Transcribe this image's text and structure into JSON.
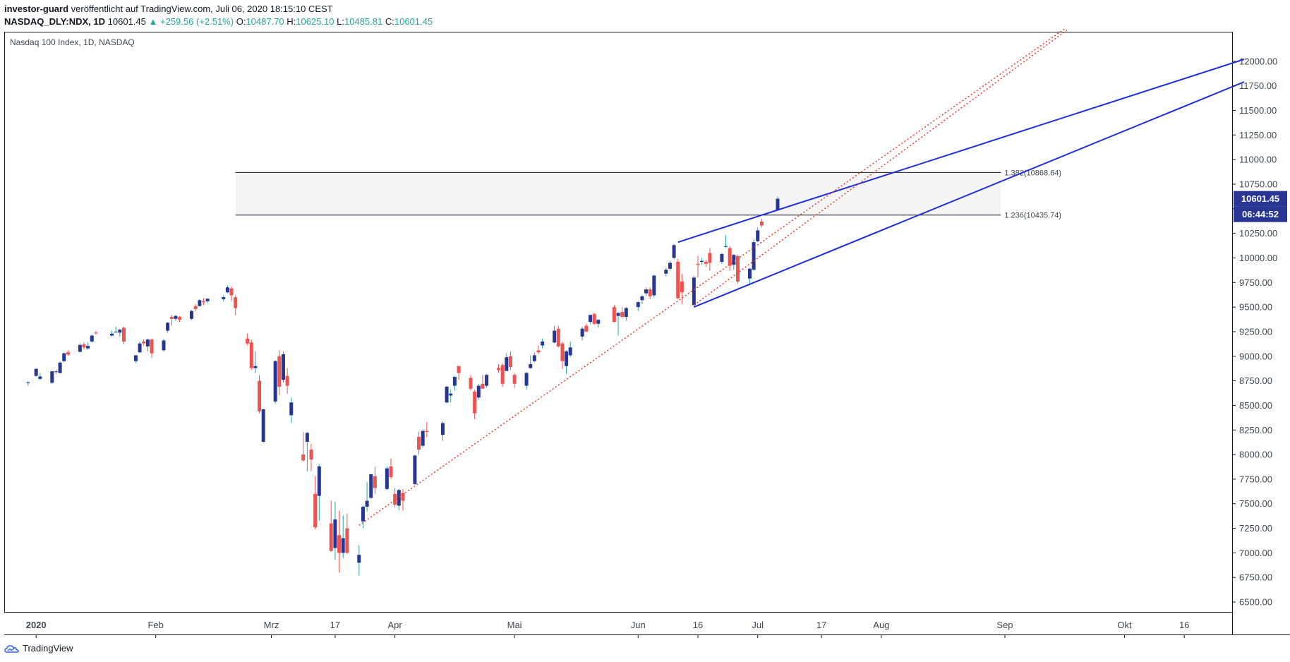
{
  "header": {
    "author": "investor-guard",
    "published": "veröffentlicht auf TradingView.com, Juli 06, 2020 18:15:10 CEST",
    "symbol": "NASDAQ_DLY:NDX, 1D",
    "last": "10601.45",
    "change": "▲ +259.56 (+2.51%)",
    "o_label": "O:",
    "o_value": "10487.70",
    "h_label": "H:",
    "h_value": "10625.10",
    "l_label": "L:",
    "l_value": "10485.81",
    "c_label": "C:",
    "c_value": "10601.45"
  },
  "footer": {
    "brand": "TradingView"
  },
  "colors": {
    "up": "#26a69a",
    "down": "#ef5350",
    "body_up": "#283593",
    "body_down": "#ef5350",
    "trendline": "#1f2ee0",
    "dotted": "#ef3b2c",
    "tag": "#283593"
  },
  "chart_data": {
    "type": "candlestick",
    "title": "Nasdaq 100 Index, 1D, NASDAQ",
    "ylim": [
      6400,
      12300
    ],
    "y_ticks": [
      6500,
      6750,
      7000,
      7250,
      7500,
      7750,
      8000,
      8250,
      8500,
      8750,
      9000,
      9250,
      9500,
      9750,
      10000,
      10250,
      10500,
      10750,
      11000,
      11250,
      11500,
      11750,
      12000
    ],
    "x_ticks": [
      {
        "date": "2020-01-02",
        "label": "2020"
      },
      {
        "date": "2020-02-01",
        "label": "Feb"
      },
      {
        "date": "2020-03-01",
        "label": "Mrz"
      },
      {
        "date": "2020-03-17",
        "label": "17"
      },
      {
        "date": "2020-04-01",
        "label": "Apr"
      },
      {
        "date": "2020-05-01",
        "label": "Mai"
      },
      {
        "date": "2020-06-01",
        "label": "Jun"
      },
      {
        "date": "2020-06-16",
        "label": "16"
      },
      {
        "date": "2020-07-01",
        "label": "Jul"
      },
      {
        "date": "2020-07-17",
        "label": "17"
      },
      {
        "date": "2020-08-01",
        "label": "Aug"
      },
      {
        "date": "2020-09-01",
        "label": "Sep"
      },
      {
        "date": "2020-10-01",
        "label": "Okt"
      },
      {
        "date": "2020-10-16",
        "label": "16"
      }
    ],
    "last_price_tag": "10601.45",
    "countdown_tag": "06:44:52",
    "candles": [
      [
        "2019-12-31",
        8730,
        8750,
        8700,
        8733
      ],
      [
        "2020-01-02",
        8800,
        8875,
        8790,
        8872
      ],
      [
        "2020-01-03",
        8770,
        8830,
        8760,
        8794
      ],
      [
        "2020-01-06",
        8730,
        8850,
        8720,
        8847
      ],
      [
        "2020-01-07",
        8840,
        8860,
        8820,
        8846
      ],
      [
        "2020-01-08",
        8830,
        8950,
        8825,
        8935
      ],
      [
        "2020-01-09",
        8950,
        9040,
        8940,
        9030
      ],
      [
        "2020-01-10",
        9040,
        9060,
        9005,
        9017
      ],
      [
        "2020-01-13",
        9045,
        9130,
        9040,
        9115
      ],
      [
        "2020-01-14",
        9120,
        9140,
        9070,
        9090
      ],
      [
        "2020-01-15",
        9080,
        9140,
        9070,
        9105
      ],
      [
        "2020-01-16",
        9150,
        9220,
        9140,
        9210
      ],
      [
        "2020-01-17",
        9240,
        9260,
        9220,
        9232
      ],
      [
        "2020-01-21",
        9210,
        9260,
        9200,
        9230
      ],
      [
        "2020-01-22",
        9250,
        9300,
        9240,
        9250
      ],
      [
        "2020-01-23",
        9240,
        9280,
        9200,
        9270
      ],
      [
        "2020-01-24",
        9290,
        9300,
        9120,
        9150
      ],
      [
        "2020-01-27",
        8950,
        9010,
        8930,
        9010
      ],
      [
        "2020-01-28",
        9040,
        9150,
        9030,
        9130
      ],
      [
        "2020-01-29",
        9150,
        9170,
        9110,
        9130
      ],
      [
        "2020-01-30",
        9100,
        9180,
        9050,
        9170
      ],
      [
        "2020-01-31",
        9170,
        9180,
        8980,
        9030
      ],
      [
        "2020-02-03",
        9060,
        9180,
        9050,
        9160
      ],
      [
        "2020-02-04",
        9260,
        9350,
        9240,
        9340
      ],
      [
        "2020-02-05",
        9400,
        9420,
        9310,
        9380
      ],
      [
        "2020-02-06",
        9380,
        9420,
        9360,
        9410
      ],
      [
        "2020-02-07",
        9400,
        9410,
        9350,
        9370
      ],
      [
        "2020-02-10",
        9380,
        9470,
        9370,
        9460
      ],
      [
        "2020-02-11",
        9510,
        9530,
        9460,
        9480
      ],
      [
        "2020-02-12",
        9510,
        9580,
        9505,
        9570
      ],
      [
        "2020-02-13",
        9560,
        9590,
        9520,
        9550
      ],
      [
        "2020-02-14",
        9560,
        9590,
        9540,
        9585
      ],
      [
        "2020-02-18",
        9580,
        9620,
        9560,
        9600
      ],
      [
        "2020-02-19",
        9650,
        9720,
        9640,
        9700
      ],
      [
        "2020-02-20",
        9690,
        9710,
        9560,
        9620
      ],
      [
        "2020-02-21",
        9600,
        9620,
        9420,
        9490
      ],
      [
        "2020-02-24",
        9180,
        9230,
        9110,
        9130
      ],
      [
        "2020-02-25",
        9140,
        9170,
        8860,
        8880
      ],
      [
        "2020-02-26",
        8880,
        9050,
        8830,
        8900
      ],
      [
        "2020-02-27",
        8750,
        8810,
        8420,
        8440
      ],
      [
        "2020-02-28",
        8130,
        8470,
        8120,
        8460
      ],
      [
        "2020-03-02",
        8540,
        8960,
        8520,
        8950
      ],
      [
        "2020-03-03",
        9000,
        9060,
        8600,
        8690
      ],
      [
        "2020-03-04",
        8760,
        9050,
        8730,
        9020
      ],
      [
        "2020-03-05",
        8800,
        8880,
        8620,
        8700
      ],
      [
        "2020-03-06",
        8400,
        8580,
        8320,
        8530
      ],
      [
        "2020-03-09",
        8000,
        8230,
        7930,
        7940
      ],
      [
        "2020-03-10",
        8130,
        8230,
        7830,
        8220
      ],
      [
        "2020-03-11",
        8050,
        8110,
        7830,
        7950
      ],
      [
        "2020-03-12",
        7600,
        7780,
        7240,
        7260
      ],
      [
        "2020-03-13",
        7580,
        7900,
        7330,
        7880
      ],
      [
        "2020-03-16",
        7300,
        7530,
        7010,
        7020
      ],
      [
        "2020-03-17",
        7050,
        7520,
        6930,
        7340
      ],
      [
        "2020-03-18",
        7180,
        7430,
        6800,
        7000
      ],
      [
        "2020-03-19",
        7000,
        7380,
        6950,
        7150
      ],
      [
        "2020-03-20",
        7250,
        7400,
        6990,
        7000
      ],
      [
        "2020-03-23",
        6900,
        7080,
        6770,
        6980
      ],
      [
        "2020-03-24",
        7320,
        7480,
        7250,
        7470
      ],
      [
        "2020-03-25",
        7470,
        7720,
        7420,
        7530
      ],
      [
        "2020-03-26",
        7560,
        7800,
        7550,
        7800
      ],
      [
        "2020-03-27",
        7780,
        7880,
        7600,
        7660
      ],
      [
        "2020-03-30",
        7650,
        7880,
        7640,
        7860
      ],
      [
        "2020-03-31",
        7880,
        7960,
        7750,
        7770
      ],
      [
        "2020-04-01",
        7600,
        7660,
        7460,
        7490
      ],
      [
        "2020-04-02",
        7480,
        7650,
        7430,
        7640
      ],
      [
        "2020-04-03",
        7610,
        7650,
        7430,
        7530
      ],
      [
        "2020-04-06",
        7700,
        8000,
        7690,
        7990
      ],
      [
        "2020-04-07",
        8180,
        8230,
        8000,
        8050
      ],
      [
        "2020-04-08",
        8090,
        8260,
        8070,
        8240
      ],
      [
        "2020-04-09",
        8240,
        8330,
        8180,
        8230
      ],
      [
        "2020-04-13",
        8200,
        8340,
        8140,
        8320
      ],
      [
        "2020-04-14",
        8530,
        8700,
        8520,
        8690
      ],
      [
        "2020-04-15",
        8600,
        8660,
        8530,
        8620
      ],
      [
        "2020-04-16",
        8700,
        8800,
        8650,
        8790
      ],
      [
        "2020-04-17",
        8900,
        8900,
        8760,
        8830
      ],
      [
        "2020-04-20",
        8780,
        8810,
        8650,
        8670
      ],
      [
        "2020-04-21",
        8640,
        8660,
        8360,
        8420
      ],
      [
        "2020-04-22",
        8580,
        8720,
        8560,
        8700
      ],
      [
        "2020-04-23",
        8720,
        8810,
        8670,
        8670
      ],
      [
        "2020-04-24",
        8700,
        8820,
        8680,
        8810
      ],
      [
        "2020-04-27",
        8880,
        8920,
        8830,
        8860
      ],
      [
        "2020-04-28",
        8910,
        8930,
        8690,
        8720
      ],
      [
        "2020-04-29",
        8850,
        9030,
        8850,
        8990
      ],
      [
        "2020-04-30",
        9000,
        9050,
        8860,
        8890
      ],
      [
        "2020-05-01",
        8810,
        8830,
        8680,
        8720
      ],
      [
        "2020-05-04",
        8700,
        8840,
        8660,
        8830
      ],
      [
        "2020-05-05",
        8880,
        9010,
        8870,
        8920
      ],
      [
        "2020-05-06",
        8950,
        9040,
        8940,
        9010
      ],
      [
        "2020-05-07",
        9060,
        9110,
        9020,
        9040
      ],
      [
        "2020-05-08",
        9110,
        9180,
        9080,
        9150
      ],
      [
        "2020-05-11",
        9140,
        9310,
        9130,
        9260
      ],
      [
        "2020-05-12",
        9280,
        9310,
        9090,
        9100
      ],
      [
        "2020-05-13",
        9130,
        9150,
        8870,
        8950
      ],
      [
        "2020-05-14",
        8900,
        9060,
        8820,
        9050
      ],
      [
        "2020-05-15",
        9010,
        9150,
        8990,
        9090
      ],
      [
        "2020-05-18",
        9200,
        9300,
        9160,
        9280
      ],
      [
        "2020-05-19",
        9310,
        9330,
        9250,
        9250
      ],
      [
        "2020-05-20",
        9350,
        9420,
        9330,
        9420
      ],
      [
        "2020-05-21",
        9430,
        9440,
        9320,
        9330
      ],
      [
        "2020-05-22",
        9330,
        9380,
        9290,
        9370
      ],
      [
        "2020-05-26",
        9500,
        9520,
        9340,
        9350
      ],
      [
        "2020-05-27",
        9410,
        9450,
        9210,
        9440
      ],
      [
        "2020-05-28",
        9450,
        9500,
        9390,
        9400
      ],
      [
        "2020-05-29",
        9400,
        9500,
        9360,
        9490
      ],
      [
        "2020-06-01",
        9500,
        9560,
        9460,
        9550
      ],
      [
        "2020-06-02",
        9570,
        9620,
        9530,
        9610
      ],
      [
        "2020-06-03",
        9640,
        9700,
        9610,
        9680
      ],
      [
        "2020-06-04",
        9680,
        9700,
        9580,
        9610
      ],
      [
        "2020-06-05",
        9620,
        9830,
        9600,
        9820
      ],
      [
        "2020-06-08",
        9840,
        9900,
        9810,
        9880
      ],
      [
        "2020-06-09",
        9890,
        9970,
        9870,
        9950
      ],
      [
        "2020-06-10",
        10000,
        10140,
        9990,
        10130
      ],
      [
        "2020-06-11",
        9960,
        9990,
        9580,
        9590
      ],
      [
        "2020-06-12",
        9760,
        9840,
        9530,
        9650
      ],
      [
        "2020-06-15",
        9520,
        9820,
        9500,
        9800
      ],
      [
        "2020-06-16",
        9940,
        10020,
        9800,
        9930
      ],
      [
        "2020-06-17",
        9960,
        10000,
        9930,
        9970
      ],
      [
        "2020-06-18",
        9960,
        9980,
        9910,
        9940
      ],
      [
        "2020-06-19",
        10050,
        10100,
        9870,
        9950
      ],
      [
        "2020-06-22",
        9960,
        10050,
        9940,
        10040
      ],
      [
        "2020-06-23",
        10120,
        10230,
        10100,
        10120
      ],
      [
        "2020-06-24",
        10100,
        10120,
        9870,
        9920
      ],
      [
        "2020-06-25",
        9930,
        10040,
        9880,
        10030
      ],
      [
        "2020-06-26",
        10020,
        10030,
        9740,
        9760
      ],
      [
        "2020-06-29",
        9790,
        9900,
        9720,
        9890
      ],
      [
        "2020-06-30",
        9880,
        10190,
        9870,
        10160
      ],
      [
        "2020-07-01",
        10170,
        10310,
        10160,
        10280
      ],
      [
        "2020-07-02",
        10370,
        10400,
        10310,
        10330
      ],
      [
        "2020-07-06",
        10487.7,
        10625.1,
        10485.81,
        10601.45
      ]
    ],
    "fib_levels": [
      {
        "label": "1.382(10868.64)",
        "value": 10868.64
      },
      {
        "label": "1.236(10435.74)",
        "value": 10435.74
      }
    ],
    "trendlines": [
      {
        "style": "solid",
        "from": [
          "2020-06-11",
          10160
        ],
        "to": [
          "2020-10-31",
          12020
        ]
      },
      {
        "style": "solid",
        "from": [
          "2020-06-15",
          9500
        ],
        "to": [
          "2020-10-31",
          11790
        ]
      },
      {
        "style": "dotted",
        "from": [
          "2020-03-23",
          7280
        ],
        "to": [
          "2020-09-16",
          12330
        ]
      },
      {
        "style": "dotted",
        "from": [
          "2020-06-15",
          9520
        ],
        "to": [
          "2020-09-17",
          12330
        ]
      }
    ]
  }
}
